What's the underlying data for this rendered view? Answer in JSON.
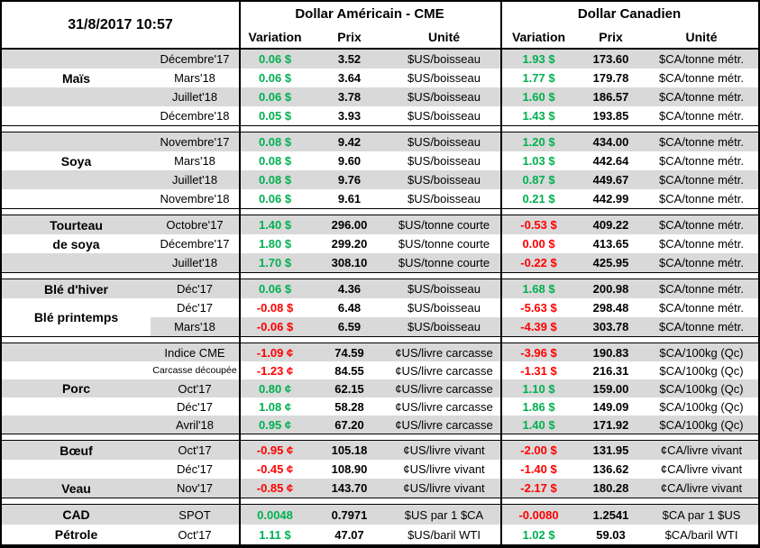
{
  "header": {
    "datetime": "31/8/2017 10:57",
    "group_us": "Dollar Américain - CME",
    "group_ca": "Dollar Canadien",
    "subcols": [
      "Variation",
      "Prix",
      "Unité",
      "Variation",
      "Prix",
      "Unité"
    ]
  },
  "colors": {
    "up": "#00B050",
    "down": "#FF0000",
    "shade": "#D9D9D9"
  },
  "sections": [
    {
      "name": "mais",
      "rows": [
        {
          "label": "",
          "month": "Décembre'17",
          "us_var": "0.06 $",
          "us_dir": "up",
          "us_prix": "3.52",
          "us_unit": "$US/boisseau",
          "ca_var": "1.93 $",
          "ca_dir": "up",
          "ca_prix": "173.60",
          "ca_unit": "$CA/tonne métr.",
          "shade": true
        },
        {
          "label": "Maïs",
          "month": "Mars'18",
          "us_var": "0.06 $",
          "us_dir": "up",
          "us_prix": "3.64",
          "us_unit": "$US/boisseau",
          "ca_var": "1.77 $",
          "ca_dir": "up",
          "ca_prix": "179.78",
          "ca_unit": "$CA/tonne métr.",
          "shade": false
        },
        {
          "label": "",
          "month": "Juillet'18",
          "us_var": "0.06 $",
          "us_dir": "up",
          "us_prix": "3.78",
          "us_unit": "$US/boisseau",
          "ca_var": "1.60 $",
          "ca_dir": "up",
          "ca_prix": "186.57",
          "ca_unit": "$CA/tonne métr.",
          "shade": true
        },
        {
          "label": "",
          "month": "Décembre'18",
          "us_var": "0.05 $",
          "us_dir": "up",
          "us_prix": "3.93",
          "us_unit": "$US/boisseau",
          "ca_var": "1.43 $",
          "ca_dir": "up",
          "ca_prix": "193.85",
          "ca_unit": "$CA/tonne métr.",
          "shade": false
        }
      ]
    },
    {
      "name": "soya",
      "rows": [
        {
          "label": "",
          "month": "Novembre'17",
          "us_var": "0.08 $",
          "us_dir": "up",
          "us_prix": "9.42",
          "us_unit": "$US/boisseau",
          "ca_var": "1.20 $",
          "ca_dir": "up",
          "ca_prix": "434.00",
          "ca_unit": "$CA/tonne métr.",
          "shade": true
        },
        {
          "label": "Soya",
          "month": "Mars'18",
          "us_var": "0.08 $",
          "us_dir": "up",
          "us_prix": "9.60",
          "us_unit": "$US/boisseau",
          "ca_var": "1.03 $",
          "ca_dir": "up",
          "ca_prix": "442.64",
          "ca_unit": "$CA/tonne métr.",
          "shade": false
        },
        {
          "label": "",
          "month": "Juillet'18",
          "us_var": "0.08 $",
          "us_dir": "up",
          "us_prix": "9.76",
          "us_unit": "$US/boisseau",
          "ca_var": "0.87 $",
          "ca_dir": "up",
          "ca_prix": "449.67",
          "ca_unit": "$CA/tonne métr.",
          "shade": true
        },
        {
          "label": "",
          "month": "Novembre'18",
          "us_var": "0.06 $",
          "us_dir": "up",
          "us_prix": "9.61",
          "us_unit": "$US/boisseau",
          "ca_var": "0.21 $",
          "ca_dir": "up",
          "ca_prix": "442.99",
          "ca_unit": "$CA/tonne métr.",
          "shade": false
        }
      ]
    },
    {
      "name": "tourteau-de-soya",
      "rows": [
        {
          "label": "Tourteau",
          "month": "Octobre'17",
          "us_var": "1.40 $",
          "us_dir": "up",
          "us_prix": "296.00",
          "us_unit": "$US/tonne courte",
          "ca_var": "-0.53 $",
          "ca_dir": "down",
          "ca_prix": "409.22",
          "ca_unit": "$CA/tonne métr.",
          "shade": true
        },
        {
          "label": "de soya",
          "month": "Décembre'17",
          "us_var": "1.80 $",
          "us_dir": "up",
          "us_prix": "299.20",
          "us_unit": "$US/tonne courte",
          "ca_var": "0.00 $",
          "ca_dir": "down",
          "ca_prix": "413.65",
          "ca_unit": "$CA/tonne métr.",
          "shade": false
        },
        {
          "label": "",
          "month": "Juillet'18",
          "us_var": "1.70 $",
          "us_dir": "up",
          "us_prix": "308.10",
          "us_unit": "$US/tonne courte",
          "ca_var": "-0.22 $",
          "ca_dir": "down",
          "ca_prix": "425.95",
          "ca_unit": "$CA/tonne métr.",
          "shade": true
        }
      ]
    },
    {
      "name": "ble",
      "rows": [
        {
          "label": "Blé d'hiver",
          "month": "Déc'17",
          "us_var": "0.06 $",
          "us_dir": "up",
          "us_prix": "4.36",
          "us_unit": "$US/boisseau",
          "ca_var": "1.68 $",
          "ca_dir": "up",
          "ca_prix": "200.98",
          "ca_unit": "$CA/tonne métr.",
          "shade": true
        },
        {
          "label": "Blé printemps",
          "label_rowspan": 2,
          "month": "Déc'17",
          "us_var": "-0.08 $",
          "us_dir": "down",
          "us_prix": "6.48",
          "us_unit": "$US/boisseau",
          "ca_var": "-5.63 $",
          "ca_dir": "down",
          "ca_prix": "298.48",
          "ca_unit": "$CA/tonne métr.",
          "shade": false
        },
        {
          "skip_label": true,
          "month": "Mars'18",
          "us_var": "-0.06 $",
          "us_dir": "down",
          "us_prix": "6.59",
          "us_unit": "$US/boisseau",
          "ca_var": "-4.39 $",
          "ca_dir": "down",
          "ca_prix": "303.78",
          "ca_unit": "$CA/tonne métr.",
          "shade": true
        }
      ]
    },
    {
      "name": "porc",
      "rows": [
        {
          "label": "",
          "month": "Indice CME",
          "us_var": "-1.09 ¢",
          "us_dir": "down",
          "us_prix": "74.59",
          "us_unit": "¢US/livre carcasse",
          "ca_var": "-3.96 $",
          "ca_dir": "down",
          "ca_prix": "190.83",
          "ca_unit": "$CA/100kg (Qc)",
          "shade": true
        },
        {
          "label": "",
          "month": "Carcasse découpée",
          "month_small": true,
          "us_var": "-1.23 ¢",
          "us_dir": "down",
          "us_prix": "84.55",
          "us_unit": "¢US/livre carcasse",
          "ca_var": "-1.31 $",
          "ca_dir": "down",
          "ca_prix": "216.31",
          "ca_unit": "$CA/100kg (Qc)",
          "shade": false
        },
        {
          "label": "Porc",
          "month": "Oct'17",
          "us_var": "0.80 ¢",
          "us_dir": "up",
          "us_prix": "62.15",
          "us_unit": "¢US/livre carcasse",
          "ca_var": "1.10 $",
          "ca_dir": "up",
          "ca_prix": "159.00",
          "ca_unit": "$CA/100kg (Qc)",
          "shade": true
        },
        {
          "label": "",
          "month": "Déc'17",
          "us_var": "1.08 ¢",
          "us_dir": "up",
          "us_prix": "58.28",
          "us_unit": "¢US/livre carcasse",
          "ca_var": "1.86 $",
          "ca_dir": "up",
          "ca_prix": "149.09",
          "ca_unit": "$CA/100kg (Qc)",
          "shade": false
        },
        {
          "label": "",
          "month": "Avril'18",
          "us_var": "0.95 ¢",
          "us_dir": "up",
          "us_prix": "67.20",
          "us_unit": "¢US/livre carcasse",
          "ca_var": "1.40 $",
          "ca_dir": "up",
          "ca_prix": "171.92",
          "ca_unit": "$CA/100kg (Qc)",
          "shade": true
        }
      ]
    },
    {
      "name": "boeuf-veau",
      "rows": [
        {
          "label": "Bœuf",
          "month": "Oct'17",
          "us_var": "-0.95 ¢",
          "us_dir": "down",
          "us_prix": "105.18",
          "us_unit": "¢US/livre vivant",
          "ca_var": "-2.00 $",
          "ca_dir": "down",
          "ca_prix": "131.95",
          "ca_unit": "¢CA/livre vivant",
          "shade": true
        },
        {
          "label": "",
          "month": "Déc'17",
          "us_var": "-0.45 ¢",
          "us_dir": "down",
          "us_prix": "108.90",
          "us_unit": "¢US/livre vivant",
          "ca_var": "-1.40 $",
          "ca_dir": "down",
          "ca_prix": "136.62",
          "ca_unit": "¢CA/livre vivant",
          "shade": false
        },
        {
          "label": "Veau",
          "month": "Nov'17",
          "us_var": "-0.85 ¢",
          "us_dir": "down",
          "us_prix": "143.70",
          "us_unit": "¢US/livre vivant",
          "ca_var": "-2.17 $",
          "ca_dir": "down",
          "ca_prix": "180.28",
          "ca_unit": "¢CA/livre vivant",
          "shade": true
        }
      ]
    },
    {
      "name": "cad-petrole",
      "rows": [
        {
          "label": "CAD",
          "month": "SPOT",
          "us_var": "0.0048",
          "us_dir": "up",
          "us_prix": "0.7971",
          "us_unit": "$US par 1 $CA",
          "ca_var": "-0.0080",
          "ca_dir": "down",
          "ca_prix": "1.2541",
          "ca_unit": "$CA par 1 $US",
          "shade": true
        },
        {
          "label": "Pétrole",
          "month": "Oct'17",
          "us_var": "1.11 $",
          "us_dir": "up",
          "us_prix": "47.07",
          "us_unit": "$US/baril WTI",
          "ca_var": "1.02 $",
          "ca_dir": "up",
          "ca_prix": "59.03",
          "ca_unit": "$CA/baril WTI",
          "shade": false
        }
      ]
    }
  ]
}
